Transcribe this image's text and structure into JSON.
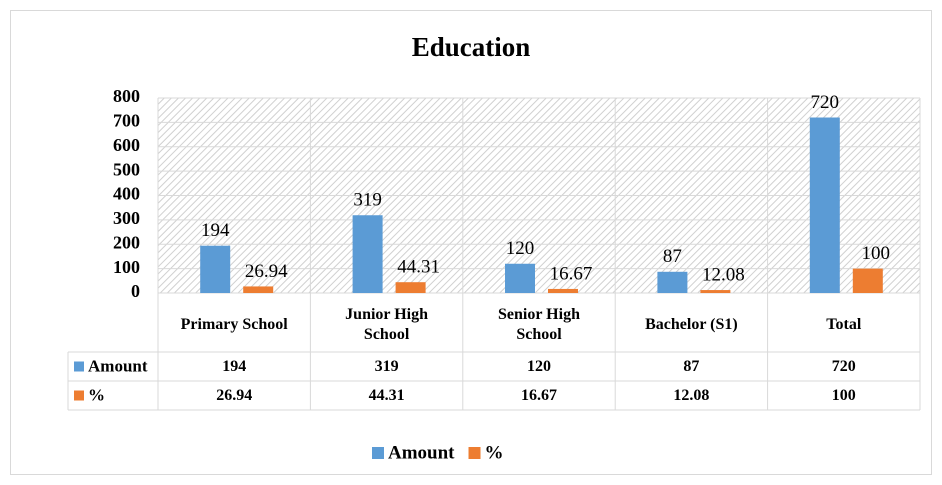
{
  "chart_data": {
    "type": "bar",
    "title": "Education",
    "categories": [
      "Primary School",
      "Junior High School",
      "Senior High School",
      "Bachelor (S1)",
      "Total"
    ],
    "series": [
      {
        "name": "Amount",
        "color": "#5b9bd5",
        "values": [
          194,
          319,
          120,
          87,
          720
        ]
      },
      {
        "name": "%",
        "color": "#ed7d31",
        "values": [
          26.94,
          44.31,
          16.67,
          12.08,
          100
        ]
      }
    ],
    "ylim": [
      0,
      800
    ],
    "yticks": [
      0,
      100,
      200,
      300,
      400,
      500,
      600,
      700,
      800
    ],
    "grid": true,
    "legend": "bottom"
  }
}
